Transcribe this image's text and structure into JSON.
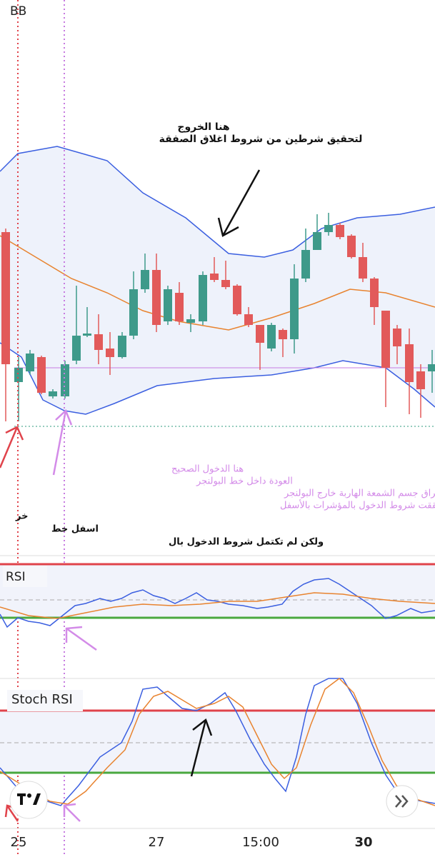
{
  "panes": {
    "main": {
      "label": "BB"
    },
    "rsi": {
      "label": "RSI"
    },
    "stoch": {
      "label": "Stoch RSI"
    }
  },
  "annotations": {
    "exit": {
      "title": "هنا الخروج",
      "text": "لتحقيق شرطين من شروط اغلاق الصفقة"
    },
    "entry": {
      "lines": [
        "هنا الدخول الصحيح",
        "العودة داخل خط البولنجر",
        "اختراق جسم الشمعة الهاربة خارج البولنجر",
        "تحققت شروط الدخول بالمؤشرات بالأسفل"
      ]
    },
    "early": {
      "lines": [
        "خر",
        "اسفل خط",
        "ولكن لم تكتمل شروط الدخول بال"
      ]
    }
  },
  "x_axis": {
    "labels": [
      "25",
      "27",
      "15:00",
      "30"
    ]
  }
}
